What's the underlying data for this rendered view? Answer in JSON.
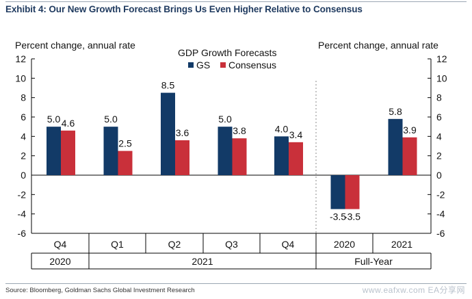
{
  "header": {
    "title": "Exhibit 4: Our New Growth Forecast Brings Us Even Higher Relative to Consensus"
  },
  "footer": {
    "source": "Source: Bloomberg, Goldman Sachs Global Investment Research",
    "watermark": "www.eafxw.com  EA分享网"
  },
  "chart_data": {
    "type": "bar",
    "title": "GDP Growth Forecasts",
    "ylabel_left": "Percent change, annual rate",
    "ylabel_right": "Percent change, annual rate",
    "ylim": [
      -6,
      12
    ],
    "yticks": [
      -6,
      -4,
      -2,
      0,
      2,
      4,
      6,
      8,
      10,
      12
    ],
    "categories": [
      "Q4",
      "Q1",
      "Q2",
      "Q3",
      "Q4",
      "2020",
      "2021"
    ],
    "groups": [
      {
        "label": "2020",
        "span": [
          0,
          0
        ]
      },
      {
        "label": "2021",
        "span": [
          1,
          4
        ]
      },
      {
        "label": "Full-Year",
        "span": [
          5,
          6
        ]
      }
    ],
    "series": [
      {
        "name": "GS",
        "color": "#123a67",
        "values": [
          5.0,
          5.0,
          8.5,
          5.0,
          4.0,
          -3.5,
          5.8
        ]
      },
      {
        "name": "Consensus",
        "color": "#c9303a",
        "values": [
          4.6,
          2.5,
          3.6,
          3.8,
          3.4,
          -3.5,
          3.9
        ]
      }
    ],
    "legend_position": "top-center",
    "grid": false
  }
}
